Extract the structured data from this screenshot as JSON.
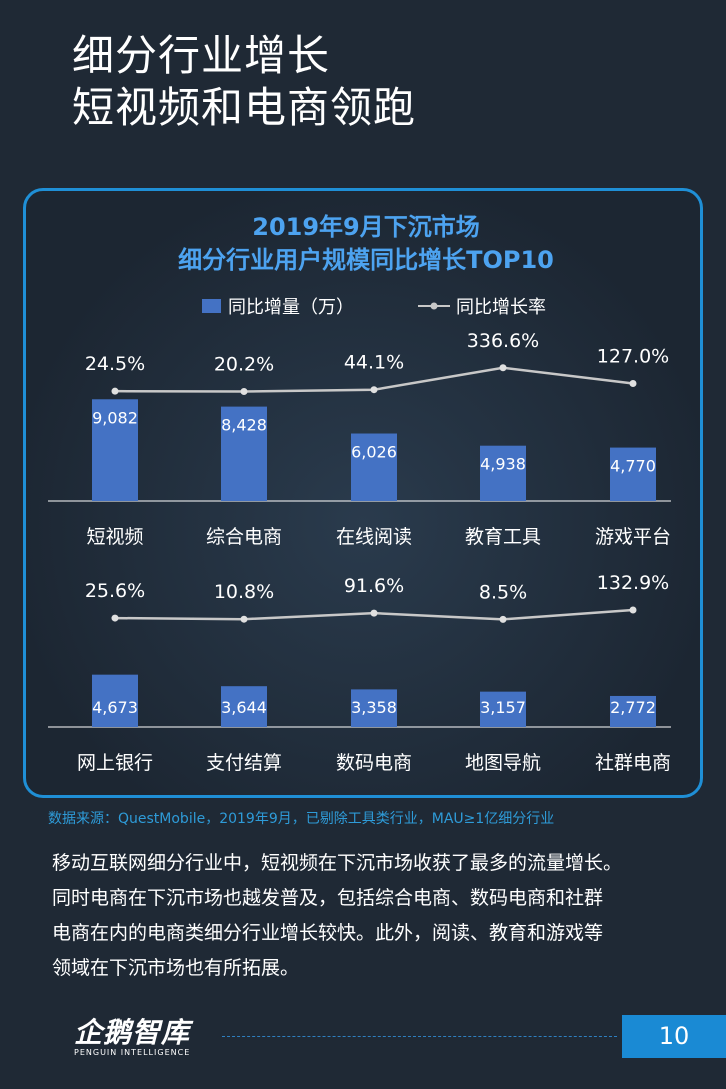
{
  "page": {
    "title_lines": [
      "细分行业增长",
      "短视频和电商领跑"
    ],
    "source": "数据来源：QuestMobile，2019年9月，已剔除工具类行业，MAU≥1亿细分行业",
    "body_lines": [
      "移动互联网细分行业中，短视频在下沉市场收获了最多的流量增长。",
      "同时电商在下沉市场也越发普及，包括综合电商、数码电商和社群",
      "电商在内的电商类细分行业增长较快。此外，阅读、教育和游戏等",
      "领域在下沉市场也有所拓展。"
    ],
    "logo": {
      "main": "企鹅智库",
      "sub": "PENGUIN INTELLIGENCE"
    },
    "page_number": "10"
  },
  "colors": {
    "bar": "#4472c4",
    "line": "#c8c8c8",
    "chart_title": "#4da3f0",
    "panel_border": "#1f8fd6",
    "page_box": "#1a8ad4"
  },
  "chart_data": {
    "type": "bar",
    "title": [
      "2019年9月下沉市场",
      "细分行业用户规模同比增长TOP10"
    ],
    "legend": [
      {
        "name": "同比增量（万）",
        "kind": "bar"
      },
      {
        "name": "同比增长率",
        "kind": "line"
      }
    ],
    "legend_position": "top",
    "panels": [
      {
        "categories": [
          "短视频",
          "综合电商",
          "在线阅读",
          "教育工具",
          "游戏平台"
        ],
        "values": [
          9082,
          8428,
          6026,
          4938,
          4770
        ],
        "value_labels": [
          "9,082",
          "8,428",
          "6,026",
          "4,938",
          "4,770"
        ],
        "rates": [
          24.5,
          20.2,
          44.1,
          336.6,
          127.0
        ],
        "rate_labels": [
          "24.5%",
          "20.2%",
          "44.1%",
          "336.6%",
          "127.0%"
        ]
      },
      {
        "categories": [
          "网上银行",
          "支付结算",
          "数码电商",
          "地图导航",
          "社群电商"
        ],
        "values": [
          4673,
          3644,
          3358,
          3157,
          2772
        ],
        "value_labels": [
          "4,673",
          "3,644",
          "3,358",
          "3,157",
          "2,772"
        ],
        "rates": [
          25.6,
          10.8,
          91.6,
          8.5,
          132.9
        ],
        "rate_labels": [
          "25.6%",
          "10.8%",
          "91.6%",
          "8.5%",
          "132.9%"
        ]
      }
    ]
  }
}
